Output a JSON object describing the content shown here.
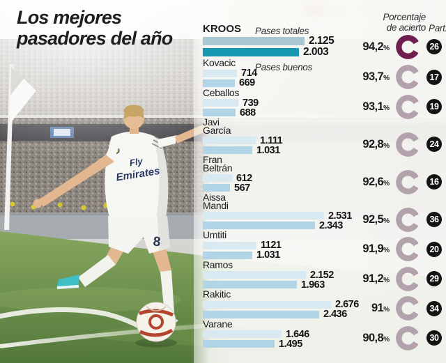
{
  "title": {
    "line1": "Los mejores",
    "line2": "pasadores del año"
  },
  "legend": {
    "pases_totales": "Pases totales",
    "pases_buenos": "Pases buenos",
    "porcentaje": "Porcentaje\nde acierto",
    "part": "Part."
  },
  "colors": {
    "bar_totales": "#d9e9f1",
    "bar_buenos": "#b2d4e7",
    "bar_totales_highlight": "#a9c7d2",
    "bar_buenos_highlight": "#1798b2",
    "ring": "#b3a1ab",
    "ring_highlight": "#6f1d4e",
    "badge": "#141414",
    "grass": "#5e8544",
    "shoe_teal": "#3fbfc4"
  },
  "chart_data": {
    "type": "bar",
    "title": "Los mejores pasadores del año",
    "orientation": "horizontal",
    "categories": [
      "Kroos",
      "Kovacic",
      "Ceballos",
      "Javi García",
      "Fran Beltrán",
      "Aissa Mandi",
      "Umtiti",
      "Ramos",
      "Rakitic",
      "Varane"
    ],
    "series": [
      {
        "name": "Pases totales",
        "values": [
          2125,
          714,
          739,
          1111,
          612,
          2531,
          1121,
          2152,
          2676,
          1646
        ]
      },
      {
        "name": "Pases buenos",
        "values": [
          2003,
          669,
          688,
          1031,
          567,
          2343,
          1031,
          1963,
          2436,
          1495
        ]
      }
    ],
    "porcentaje_acierto": [
      "94,2",
      "93,7",
      "93,1",
      "92,8",
      "92,6",
      "92,5",
      "91,9",
      "91,2",
      "91",
      "90,8"
    ],
    "partidos": [
      26,
      17,
      19,
      24,
      16,
      36,
      20,
      29,
      34,
      30
    ],
    "players": [
      {
        "name": "KROOS",
        "total_display": "2.125",
        "total": 2125,
        "good_display": "2.003",
        "good": 2003,
        "pct": "94,2",
        "part": "26",
        "highlight": true
      },
      {
        "name": "Kovacic",
        "total_display": "714",
        "total": 714,
        "good_display": "669",
        "good": 669,
        "pct": "93,7",
        "part": "17",
        "highlight": false
      },
      {
        "name": "Ceballos",
        "total_display": "739",
        "total": 739,
        "good_display": "688",
        "good": 688,
        "pct": "93,1",
        "part": "19",
        "highlight": false
      },
      {
        "name": "Javi\nGarcía",
        "total_display": "1.111",
        "total": 1111,
        "good_display": "1.031",
        "good": 1031,
        "pct": "92,8",
        "part": "24",
        "highlight": false
      },
      {
        "name": "Fran\nBeltrán",
        "total_display": "612",
        "total": 612,
        "good_display": "567",
        "good": 567,
        "pct": "92,6",
        "part": "16",
        "highlight": false
      },
      {
        "name": "Aissa\nMandi",
        "total_display": "2.531",
        "total": 2531,
        "good_display": "2.343",
        "good": 2343,
        "pct": "92,5",
        "part": "36",
        "highlight": false
      },
      {
        "name": "Umtiti",
        "total_display": "1121",
        "total": 1121,
        "good_display": "1.031",
        "good": 1031,
        "pct": "91,9",
        "part": "20",
        "highlight": false
      },
      {
        "name": "Ramos",
        "total_display": "2.152",
        "total": 2152,
        "good_display": "1.963",
        "good": 1963,
        "pct": "91,2",
        "part": "29",
        "highlight": false
      },
      {
        "name": "Rakitic",
        "total_display": "2.676",
        "total": 2676,
        "good_display": "2.436",
        "good": 2436,
        "pct": "91",
        "part": "34",
        "highlight": false
      },
      {
        "name": "Varane",
        "total_display": "1.646",
        "total": 1646,
        "good_display": "1.495",
        "good": 1495,
        "pct": "90,8",
        "part": "30",
        "highlight": false
      }
    ]
  }
}
